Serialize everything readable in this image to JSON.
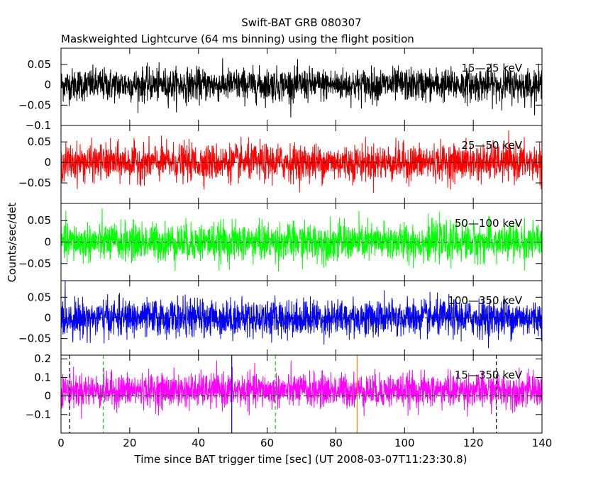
{
  "chart_data": {
    "type": "line",
    "title": "Swift-BAT GRB 080307",
    "subtitle": "Maskweighted Lightcurve (64 ms binning) using the flight position",
    "xlabel": "Time since BAT trigger time [sec] (UT 2008-03-07T11:23:30.8)",
    "ylabel": "Counts/sec/det",
    "xlim": [
      0,
      140
    ],
    "x_ticks": [
      0,
      20,
      40,
      60,
      80,
      100,
      120,
      140
    ],
    "bin_width_sec": 0.064,
    "grid": false,
    "panels": [
      {
        "name": "15-25 keV",
        "label": "15—25 keV",
        "color": "#000000",
        "ylim": [
          -0.1,
          0.09
        ],
        "y_ticks": [
          -0.1,
          -0.05,
          0,
          0.05
        ],
        "y_tick_labels": [
          "−0.1",
          "−0.05",
          "0",
          "0.05"
        ],
        "mean": 0.0,
        "noise_sigma": 0.02,
        "zero_line": false
      },
      {
        "name": "25-50 keV",
        "label": "25—50 keV",
        "color": "#ff0000",
        "ylim": [
          -0.1,
          0.09
        ],
        "y_ticks": [
          -0.05,
          0,
          0.05
        ],
        "y_tick_labels": [
          "−0.05",
          "0",
          "0.05"
        ],
        "mean": 0.0,
        "noise_sigma": 0.022,
        "zero_line": true
      },
      {
        "name": "50-100 keV",
        "label": "50—100 keV",
        "color": "#00ff00",
        "ylim": [
          -0.09,
          0.09
        ],
        "y_ticks": [
          -0.05,
          0,
          0.05
        ],
        "y_tick_labels": [
          "−0.05",
          "0",
          "0.05"
        ],
        "mean": 0.0,
        "noise_sigma": 0.022,
        "zero_line": true
      },
      {
        "name": "100-350 keV",
        "label": "100—350 keV",
        "color": "#0000ff",
        "ylim": [
          -0.09,
          0.09
        ],
        "y_ticks": [
          -0.05,
          0,
          0.05
        ],
        "y_tick_labels": [
          "−0.05",
          "0",
          "0.05"
        ],
        "mean": 0.0,
        "noise_sigma": 0.022,
        "zero_line": true
      },
      {
        "name": "15-350 keV",
        "label": "15—350 keV",
        "color": "#ff00ff",
        "ylim": [
          -0.2,
          0.22
        ],
        "y_ticks": [
          -0.1,
          0,
          0.1,
          0.2
        ],
        "y_tick_labels": [
          "−0.1",
          "0",
          "0.1",
          "0.2"
        ],
        "mean": 0.03,
        "noise_sigma": 0.045,
        "zero_line": true,
        "markers": [
          {
            "x": 2.5,
            "color": "#000000",
            "style": "dashed"
          },
          {
            "x": 12.3,
            "color": "#00dd00",
            "style": "dashed"
          },
          {
            "x": 49.7,
            "color": "#0000aa",
            "style": "solid"
          },
          {
            "x": 62.4,
            "color": "#00dd00",
            "style": "dashed"
          },
          {
            "x": 86.2,
            "color": "#ff8000",
            "style": "solid"
          },
          {
            "x": 126.7,
            "color": "#000000",
            "style": "dashed"
          }
        ]
      }
    ]
  }
}
